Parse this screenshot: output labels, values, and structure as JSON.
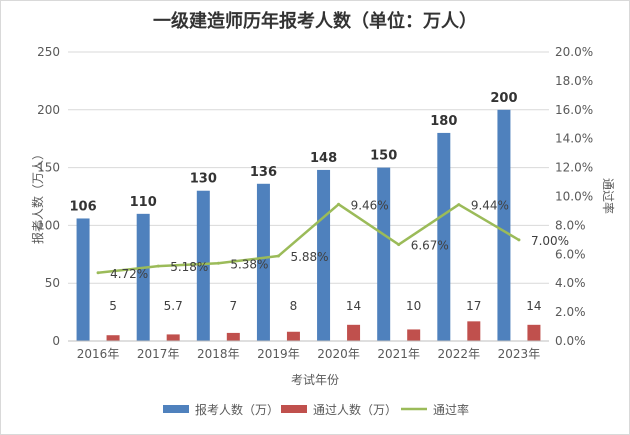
{
  "chart_data": {
    "type": "bar",
    "title": "一级建造师历年报考人数（单位：万人）",
    "xlabel": "考试年份",
    "ylabel": "报考人数（万人）",
    "y2label": "通过率",
    "categories": [
      "2016年",
      "2017年",
      "2018年",
      "2019年",
      "2020年",
      "2021年",
      "2022年",
      "2023年"
    ],
    "ylim": [
      0,
      250
    ],
    "y_ticks": [
      "0",
      "50",
      "100",
      "150",
      "200",
      "250"
    ],
    "y2lim": [
      0,
      20
    ],
    "y2_ticks": [
      "0.0%",
      "2.0%",
      "4.0%",
      "6.0%",
      "8.0%",
      "10.0%",
      "12.0%",
      "14.0%",
      "16.0%",
      "18.0%",
      "20.0%"
    ],
    "grid": true,
    "legend_position": "bottom",
    "series": [
      {
        "name": "报考人数（万）",
        "kind": "bar",
        "axis": "left",
        "color": "#4f81bd",
        "values": [
          106,
          110,
          130,
          136,
          148,
          150,
          180,
          200
        ],
        "labels": [
          "106",
          "110",
          "130",
          "136",
          "148",
          "150",
          "180",
          "200"
        ]
      },
      {
        "name": "通过人数（万）",
        "kind": "bar",
        "axis": "left",
        "color": "#c0504d",
        "values": [
          5,
          5.7,
          7,
          8,
          14,
          10,
          17,
          14
        ],
        "labels": [
          "5",
          "5.7",
          "7",
          "8",
          "14",
          "10",
          "17",
          "14"
        ]
      },
      {
        "name": "通过率",
        "kind": "line",
        "axis": "right",
        "color": "#9bbb59",
        "values": [
          4.72,
          5.18,
          5.38,
          5.88,
          9.46,
          6.67,
          9.44,
          7.0
        ],
        "labels": [
          "4.72%",
          "5.18%",
          "5.38%",
          "5.88%",
          "9.46%",
          "6.67%",
          "9.44%",
          "7.00%"
        ]
      }
    ]
  }
}
